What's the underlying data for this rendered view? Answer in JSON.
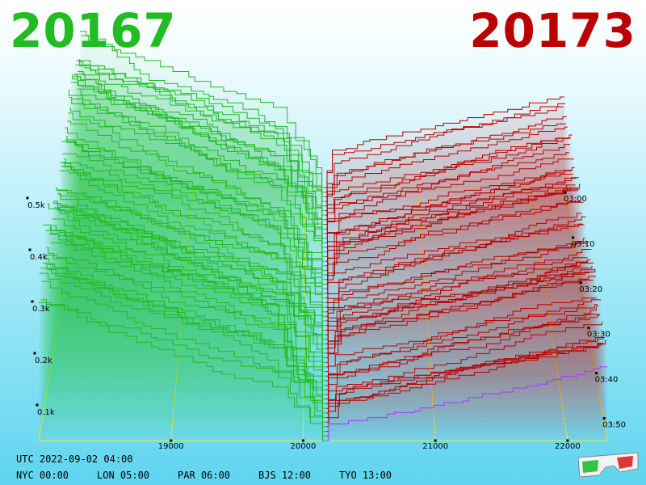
{
  "header": {
    "bid_price": "20167",
    "ask_price": "20173"
  },
  "footer": {
    "utc": "UTC 2022-09-02 04:00",
    "cities": [
      "NYC 00:00",
      "LON 05:00",
      "PAR 06:00",
      "BJS 12:00",
      "TYO 13:00"
    ]
  },
  "colors": {
    "bid": "#22bb22",
    "ask": "#bb0000",
    "grid": "#eeee33",
    "mid": "#aa33ff"
  },
  "icons": {
    "corner": "3d-glasses-icon"
  },
  "chart_data": {
    "type": "area",
    "price_ticks": [
      "19000",
      "20000",
      "21000",
      "22000"
    ],
    "price_values": [
      19000,
      20000,
      21000,
      22000
    ],
    "depth_ticks": [
      "0.1k",
      "0.2k",
      "0.3k",
      "0.4k",
      "0.5k"
    ],
    "depth_values": [
      100,
      200,
      300,
      400,
      500
    ],
    "time_ticks": [
      "03:00",
      "03:10",
      "03:20",
      "03:30",
      "03:40",
      "03:50"
    ],
    "price_range": [
      18000,
      22300
    ],
    "bid_price": 20167,
    "ask_price": 20173,
    "snapshot_count": 56,
    "max_bid_depth": 580,
    "max_ask_depth": 470
  }
}
